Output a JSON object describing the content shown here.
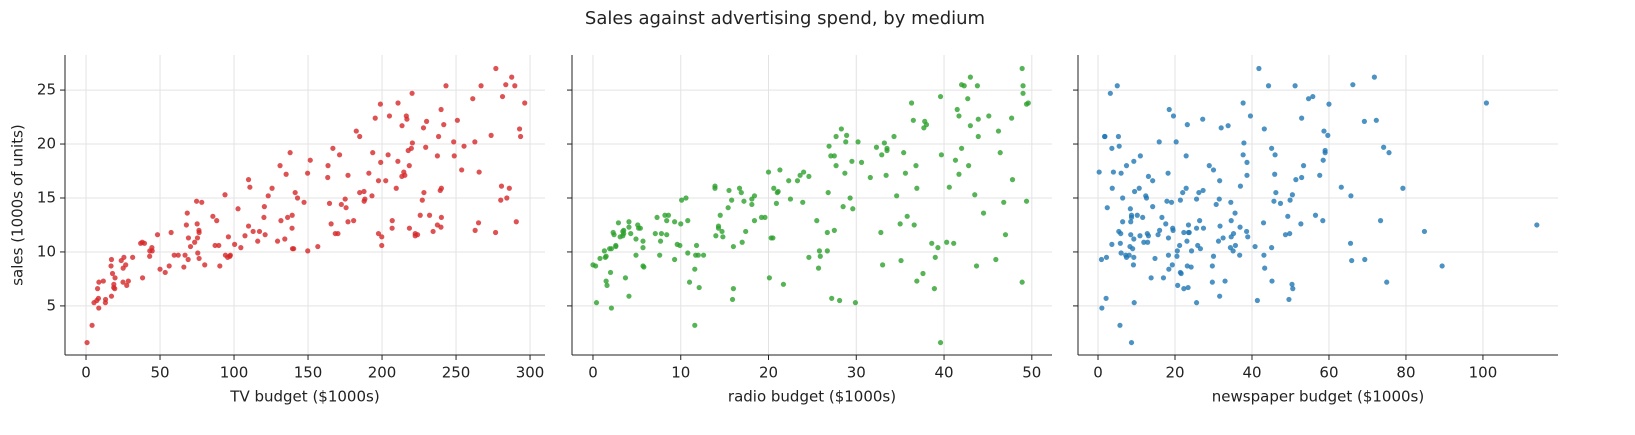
{
  "title": "Sales against advertising spend, by medium",
  "chart_data": [
    {
      "type": "scatter",
      "xlabel": "TV budget ($1000s)",
      "ylabel": "sales (1000s of units)",
      "color": "#d62728",
      "xlim": [
        -14.2,
        310.1
      ],
      "xticks": [
        0,
        50,
        100,
        150,
        200,
        250,
        300
      ],
      "ylim": [
        0.45,
        28.25
      ],
      "yticks": [
        5,
        10,
        15,
        20,
        25
      ],
      "grid": true,
      "x": [
        230.1,
        44.5,
        17.2,
        151.5,
        180.8,
        8.7,
        57.5,
        120.2,
        8.6,
        199.8,
        66.1,
        214.7,
        23.8,
        97.5,
        204.1,
        195.4,
        67.8,
        281.4,
        69.2,
        147.3,
        218.4,
        237.4,
        13.2,
        228.3,
        62.3,
        262.9,
        142.9,
        240.1,
        248.8,
        70.6,
        292.9,
        112.9,
        97.2,
        265.6,
        95.7,
        290.7,
        266.9,
        74.7,
        43.1,
        228,
        202.5,
        177,
        293.6,
        206.9,
        25.1,
        175.1,
        89.7,
        239.9,
        227.2,
        66.9,
        199.8,
        100.4,
        216.4,
        182.6,
        262.7,
        198.9,
        7.3,
        136.2,
        210.8,
        210.7,
        53.5,
        261.3,
        239.3,
        102.7,
        131.1,
        69,
        31.5,
        139.3,
        237.4,
        216.8,
        199.1,
        109.8,
        26.8,
        129.4,
        213.4,
        16.9,
        27.5,
        120.5,
        5.4,
        116,
        76.4,
        239.8,
        75.3,
        68.4,
        213.5,
        193.2,
        76.3,
        110.7,
        88.3,
        109.8,
        134.3,
        28.6,
        217.7,
        250.9,
        107.4,
        163.3,
        197.6,
        184.9,
        289.7,
        135.2,
        222.4,
        296.4,
        280.2,
        187.9,
        238.2,
        137.9,
        25,
        90.4,
        13.1,
        255.4,
        225.8,
        241.7,
        175.7,
        209.6,
        78.2,
        75.1,
        139.2,
        76.4,
        125.7,
        19.4,
        141.3,
        18.8,
        224,
        123.1,
        229.5,
        87.2,
        7.8,
        80.2,
        220.3,
        59.6,
        0.7,
        265.2,
        8.4,
        219.8,
        36.9,
        48.3,
        25.6,
        273.7,
        43,
        184.9,
        73.4,
        193.7,
        220.5,
        104.6,
        96.2,
        140.3,
        240.1,
        243.2,
        38,
        44.7,
        280.7,
        121,
        197.6,
        171.3,
        187.8,
        4.1,
        93.9,
        149.8,
        11.7,
        131.7,
        172.5,
        85.7,
        188.4,
        163.5,
        117.2,
        234.5,
        17.9,
        206.8,
        215.4,
        284.3,
        50,
        164.5,
        19.6,
        168.4,
        222.4,
        276.9,
        248.4,
        170.2,
        276.7,
        165.6,
        156.6,
        218.5,
        56.2,
        287.6,
        253.8,
        205,
        139.5,
        191.1,
        286,
        18.7,
        39.5,
        75.5,
        17.2,
        166.8,
        149.7,
        38.2,
        94.2,
        177,
        283.6,
        232.1
      ],
      "values": [
        22.1,
        10.4,
        9.3,
        18.5,
        12.9,
        7.2,
        11.8,
        13.2,
        4.8,
        10.6,
        8.6,
        17.4,
        9.2,
        9.7,
        19,
        22.4,
        12.5,
        24.4,
        11.3,
        14.6,
        18,
        12.5,
        5.6,
        15.5,
        9.7,
        12,
        15,
        15.9,
        18.9,
        10.5,
        21.4,
        11.9,
        9.6,
        17.4,
        9.5,
        12.8,
        25.4,
        14.7,
        10.1,
        21.5,
        16.6,
        17.1,
        20.7,
        12.9,
        8.5,
        14.9,
        10.6,
        23.2,
        14.8,
        9.7,
        11.4,
        10.7,
        22.6,
        21.2,
        20.2,
        23.7,
        5.5,
        13.2,
        23.8,
        18.4,
        8.1,
        24.2,
        15.7,
        14,
        18,
        9.3,
        9.5,
        13.4,
        18.9,
        22.3,
        18.3,
        12.4,
        8.8,
        11,
        17,
        8.7,
        6.9,
        14.2,
        5.3,
        11,
        11.8,
        12.3,
        11.3,
        13.6,
        21.7,
        15.2,
        12,
        16,
        12.9,
        16.7,
        11.2,
        7.3,
        19.4,
        22.2,
        11.5,
        16.9,
        11.7,
        15.5,
        25.4,
        17.2,
        11.7,
        23.8,
        14.8,
        14.7,
        20.7,
        19.2,
        7.2,
        8.7,
        5.3,
        19.8,
        13.4,
        21.8,
        14.1,
        15.9,
        14.6,
        12.6,
        12.2,
        9.4,
        15.9,
        6.6,
        15.5,
        7,
        11.6,
        15.2,
        19.7,
        10.6,
        6.6,
        8.8,
        24.7,
        9.7,
        1.6,
        12.7,
        5.7,
        19.6,
        10.8,
        11.6,
        9.5,
        20.8,
        9.6,
        20.7,
        10.9,
        19.2,
        20.1,
        10.4,
        11.4,
        10.3,
        13.2,
        25.4,
        10.9,
        10.1,
        16.1,
        11.6,
        16.6,
        19,
        15.6,
        3.2,
        15.3,
        10.1,
        7.3,
        12.9,
        14.4,
        13.3,
        14.9,
        18,
        11.9,
        11.9,
        8,
        12.2,
        17.1,
        15,
        8.4,
        14.5,
        7.6,
        11.7,
        11.5,
        27,
        20.2,
        11.7,
        11.8,
        12.6,
        10.5,
        12.2,
        8.7,
        26.2,
        17.6,
        22.6,
        10.3,
        17.3,
        15.9,
        6.7,
        10.8,
        9.9,
        5.9,
        19.6,
        17.3,
        7.6,
        9.7,
        12.8,
        25.5,
        13.4
      ]
    },
    {
      "type": "scatter",
      "xlabel": "radio budget ($1000s)",
      "color": "#2ca02c",
      "xlim": [
        -2.39,
        52.3
      ],
      "xticks": [
        0,
        10,
        20,
        30,
        40,
        50
      ],
      "ylim": [
        0.45,
        28.25
      ],
      "yticks": [
        5,
        10,
        15,
        20,
        25
      ],
      "grid": true,
      "x": [
        37.8,
        39.3,
        45.9,
        41.3,
        10.8,
        48.9,
        32.8,
        19.6,
        2.1,
        2.6,
        5.8,
        24,
        35.1,
        7.6,
        32.9,
        47.7,
        36.6,
        39.6,
        20.5,
        23.9,
        27.7,
        5.1,
        15.9,
        16.9,
        12.6,
        3.5,
        29.3,
        16.7,
        27.1,
        16,
        28.3,
        17.4,
        1.5,
        20,
        1.4,
        4.1,
        43.8,
        49.4,
        26.7,
        37.7,
        22.3,
        33.4,
        27.7,
        8.4,
        25.7,
        22.5,
        9.9,
        41.5,
        15.8,
        11.7,
        3.1,
        9.6,
        41.7,
        46.2,
        28.8,
        49.4,
        28.1,
        19.2,
        49.6,
        29.5,
        2,
        42.7,
        15.5,
        29.6,
        42.8,
        9.3,
        24.6,
        14.5,
        27.5,
        43.9,
        30.6,
        14.3,
        33,
        5.7,
        24.6,
        43.7,
        1.6,
        28.5,
        29.9,
        7.7,
        26.7,
        4.1,
        20.3,
        44.5,
        43,
        18.4,
        27.5,
        40.6,
        25.5,
        47.8,
        4.9,
        1.5,
        33.5,
        36.5,
        14,
        31.6,
        3.5,
        21,
        42.3,
        41.7,
        4.3,
        36.3,
        10.1,
        17.2,
        34.3,
        46.4,
        11,
        0.3,
        0.4,
        26.9,
        8.2,
        38,
        15.4,
        20.6,
        46.8,
        35,
        14.3,
        0.8,
        36.9,
        16,
        26.8,
        21.7,
        2.4,
        34.6,
        32.3,
        11.8,
        38.9,
        0,
        49,
        12,
        39.6,
        2.9,
        27.2,
        33.5,
        38.6,
        47,
        39,
        28.9,
        25.9,
        43.9,
        17,
        35.4,
        33.2,
        5.7,
        14.8,
        1.9,
        7.3,
        49,
        40.3,
        25.8,
        13.9,
        8.4,
        23.3,
        39.7,
        21.1,
        11.6,
        43.5,
        1.3,
        36.9,
        18.4,
        18.1,
        35.8,
        18.1,
        36.8,
        14.7,
        3.4,
        37.6,
        5.2,
        23.6,
        10.6,
        11.6,
        20.9,
        20.1,
        7.1,
        3.4,
        48.9,
        30.2,
        7.8,
        2.3,
        10,
        2.6,
        5.4,
        5.7,
        43,
        21.3,
        45.1,
        2.1,
        28.7,
        13.9,
        12.1,
        41.1,
        10.8,
        4.1,
        42,
        35.6,
        3.7,
        4.9,
        9.3,
        42,
        8.6
      ],
      "values": [
        22.1,
        10.4,
        9.3,
        18.5,
        12.9,
        7.2,
        11.8,
        13.2,
        4.8,
        10.6,
        8.6,
        17.4,
        9.2,
        9.7,
        19,
        22.4,
        12.5,
        24.4,
        11.3,
        14.6,
        18,
        12.5,
        5.6,
        15.5,
        9.7,
        12,
        15,
        15.9,
        18.9,
        10.5,
        21.4,
        11.9,
        9.6,
        17.4,
        9.5,
        12.8,
        25.4,
        14.7,
        10.1,
        21.5,
        16.6,
        17.1,
        20.7,
        12.9,
        8.5,
        14.9,
        10.6,
        23.2,
        14.8,
        9.7,
        11.4,
        10.7,
        22.6,
        21.2,
        20.2,
        23.7,
        5.5,
        13.2,
        23.8,
        18.4,
        8.1,
        24.2,
        15.7,
        14,
        18,
        9.3,
        9.5,
        13.4,
        18.9,
        22.3,
        18.3,
        12.4,
        8.8,
        11,
        17,
        8.7,
        6.9,
        14.2,
        5.3,
        11,
        11.8,
        12.3,
        11.3,
        13.6,
        21.7,
        15.2,
        12,
        16,
        12.9,
        16.7,
        11.2,
        7.3,
        19.4,
        22.2,
        11.5,
        16.9,
        11.7,
        15.5,
        25.4,
        17.2,
        11.7,
        23.8,
        14.8,
        14.7,
        20.7,
        19.2,
        7.2,
        8.7,
        5.3,
        19.8,
        13.4,
        21.8,
        14.1,
        15.9,
        14.6,
        12.6,
        12.2,
        9.4,
        15.9,
        6.6,
        15.5,
        7,
        11.6,
        15.2,
        19.7,
        10.6,
        6.6,
        8.8,
        24.7,
        9.7,
        1.6,
        12.7,
        5.7,
        19.6,
        10.8,
        11.6,
        9.5,
        20.8,
        9.6,
        20.7,
        10.9,
        19.2,
        20.1,
        10.4,
        11.4,
        10.3,
        13.2,
        25.4,
        10.9,
        10.1,
        16.1,
        11.6,
        16.6,
        19,
        15.6,
        3.2,
        15.3,
        10.1,
        7.3,
        12.9,
        14.4,
        13.3,
        14.9,
        18,
        11.9,
        11.9,
        8,
        12.2,
        17.1,
        15,
        8.4,
        14.5,
        7.6,
        11.7,
        11.5,
        27,
        20.2,
        11.7,
        11.8,
        12.6,
        10.5,
        12.2,
        8.7,
        26.2,
        17.6,
        22.6,
        10.3,
        17.3,
        15.9,
        6.7,
        10.8,
        9.9,
        5.9,
        19.6,
        17.3,
        7.6,
        9.7,
        12.8,
        25.5,
        13.4
      ]
    },
    {
      "type": "scatter",
      "xlabel": "newspaper budget ($1000s)",
      "color": "#1f77b4",
      "xlim": [
        -5.2,
        119.5
      ],
      "xticks": [
        0,
        20,
        40,
        60,
        80,
        100
      ],
      "ylim": [
        0.45,
        28.25
      ],
      "yticks": [
        5,
        10,
        15,
        20,
        25
      ],
      "grid": true,
      "x": [
        69.2,
        45.1,
        69.3,
        58.5,
        58.4,
        75,
        23.5,
        11.6,
        1,
        21.2,
        24.2,
        4,
        65.9,
        7.2,
        46,
        52.9,
        114,
        55.8,
        18.3,
        19.1,
        53.4,
        23.5,
        49.6,
        26.2,
        18.3,
        19.5,
        12.6,
        22.9,
        22.9,
        40.8,
        43.2,
        38.6,
        30,
        0.3,
        7.4,
        8.5,
        5,
        45.7,
        35.1,
        32,
        31.6,
        38.7,
        1.8,
        26.4,
        43.3,
        31.5,
        35.7,
        18.5,
        49.9,
        36.8,
        34.6,
        3.6,
        39.6,
        58.7,
        15.9,
        60,
        41.4,
        16.6,
        37.7,
        9.3,
        21.4,
        54.7,
        27.3,
        8.4,
        28.9,
        0.9,
        2.2,
        10.2,
        11,
        27.2,
        38.7,
        31.7,
        19.3,
        31.3,
        13.1,
        89.4,
        20.7,
        14.2,
        9.4,
        23.1,
        22.3,
        36.9,
        32.5,
        35.6,
        33.8,
        65.7,
        16,
        63.2,
        73.4,
        51.4,
        9.3,
        33,
        59,
        72.3,
        10.9,
        52.9,
        5.9,
        22,
        51.2,
        45.9,
        49.8,
        100.9,
        21.4,
        17.9,
        5.3,
        59,
        29.7,
        23.2,
        25.6,
        5.5,
        56.5,
        23.2,
        2.4,
        10.7,
        34.5,
        52.7,
        25.6,
        14.8,
        79.2,
        22.3,
        46.2,
        50.4,
        15.6,
        12.4,
        74.2,
        25.9,
        50.6,
        9.2,
        3.2,
        43.1,
        8.7,
        43,
        2.1,
        45.1,
        65.6,
        8.5,
        9.3,
        59.7,
        20.5,
        1.7,
        12.9,
        75.6,
        37.9,
        34.4,
        38.9,
        9,
        8.7,
        44.3,
        11.9,
        20.6,
        37,
        48.7,
        14.2,
        37.7,
        9.5,
        5.7,
        50.5,
        24.3,
        45.2,
        34.6,
        30.7,
        49.3,
        25.6,
        7.4,
        5.4,
        84.8,
        21.6,
        19.4,
        57.6,
        6.4,
        18.4,
        47.4,
        17,
        12.8,
        13.1,
        41.8,
        20.3,
        35.2,
        23.7,
        17.6,
        8.3,
        27.4,
        29.7,
        71.8,
        30,
        19.6,
        26.6,
        18.2,
        3.7,
        23.4,
        5.8,
        6,
        31.6,
        3.6,
        6,
        13.8,
        8.1,
        6.4,
        66.2,
        8.7
      ],
      "values": [
        22.1,
        10.4,
        9.3,
        18.5,
        12.9,
        7.2,
        11.8,
        13.2,
        4.8,
        10.6,
        8.6,
        17.4,
        9.2,
        9.7,
        19,
        22.4,
        12.5,
        24.4,
        11.3,
        14.6,
        18,
        12.5,
        5.6,
        15.5,
        9.7,
        12,
        15,
        15.9,
        18.9,
        10.5,
        21.4,
        11.9,
        9.6,
        17.4,
        9.5,
        12.8,
        25.4,
        14.7,
        10.1,
        21.5,
        16.6,
        17.1,
        20.7,
        12.9,
        8.5,
        14.9,
        10.6,
        23.2,
        14.8,
        9.7,
        11.4,
        10.7,
        22.6,
        21.2,
        20.2,
        23.7,
        5.5,
        13.2,
        23.8,
        18.4,
        8.1,
        24.2,
        15.7,
        14,
        18,
        9.3,
        9.5,
        13.4,
        18.9,
        22.3,
        18.3,
        12.4,
        8.8,
        11,
        17,
        8.7,
        6.9,
        14.2,
        5.3,
        11,
        11.8,
        12.3,
        11.3,
        13.6,
        21.7,
        15.2,
        12,
        16,
        12.9,
        16.7,
        11.2,
        7.3,
        19.4,
        22.2,
        11.5,
        16.9,
        11.7,
        15.5,
        25.4,
        17.2,
        11.7,
        23.8,
        14.8,
        14.7,
        20.7,
        19.2,
        7.2,
        8.7,
        5.3,
        19.8,
        13.4,
        21.8,
        14.1,
        15.9,
        14.6,
        12.6,
        12.2,
        9.4,
        15.9,
        6.6,
        15.5,
        7,
        11.6,
        15.2,
        19.7,
        10.6,
        6.6,
        8.8,
        24.7,
        9.7,
        1.6,
        12.7,
        5.7,
        19.6,
        10.8,
        11.6,
        9.5,
        20.8,
        9.6,
        20.7,
        10.9,
        19.2,
        20.1,
        10.4,
        11.4,
        10.3,
        13.2,
        25.4,
        10.9,
        10.1,
        16.1,
        11.6,
        16.6,
        19,
        15.6,
        3.2,
        15.3,
        10.1,
        7.3,
        12.9,
        14.4,
        13.3,
        14.9,
        18,
        11.9,
        11.9,
        8,
        12.2,
        17.1,
        15,
        8.4,
        14.5,
        7.6,
        11.7,
        11.5,
        27,
        20.2,
        11.7,
        11.8,
        12.6,
        10.5,
        12.2,
        8.7,
        26.2,
        17.6,
        22.6,
        10.3,
        17.3,
        15.9,
        6.7,
        10.8,
        9.9,
        5.9,
        19.6,
        17.3,
        7.6,
        9.7,
        12.8,
        25.5,
        13.4
      ]
    }
  ]
}
